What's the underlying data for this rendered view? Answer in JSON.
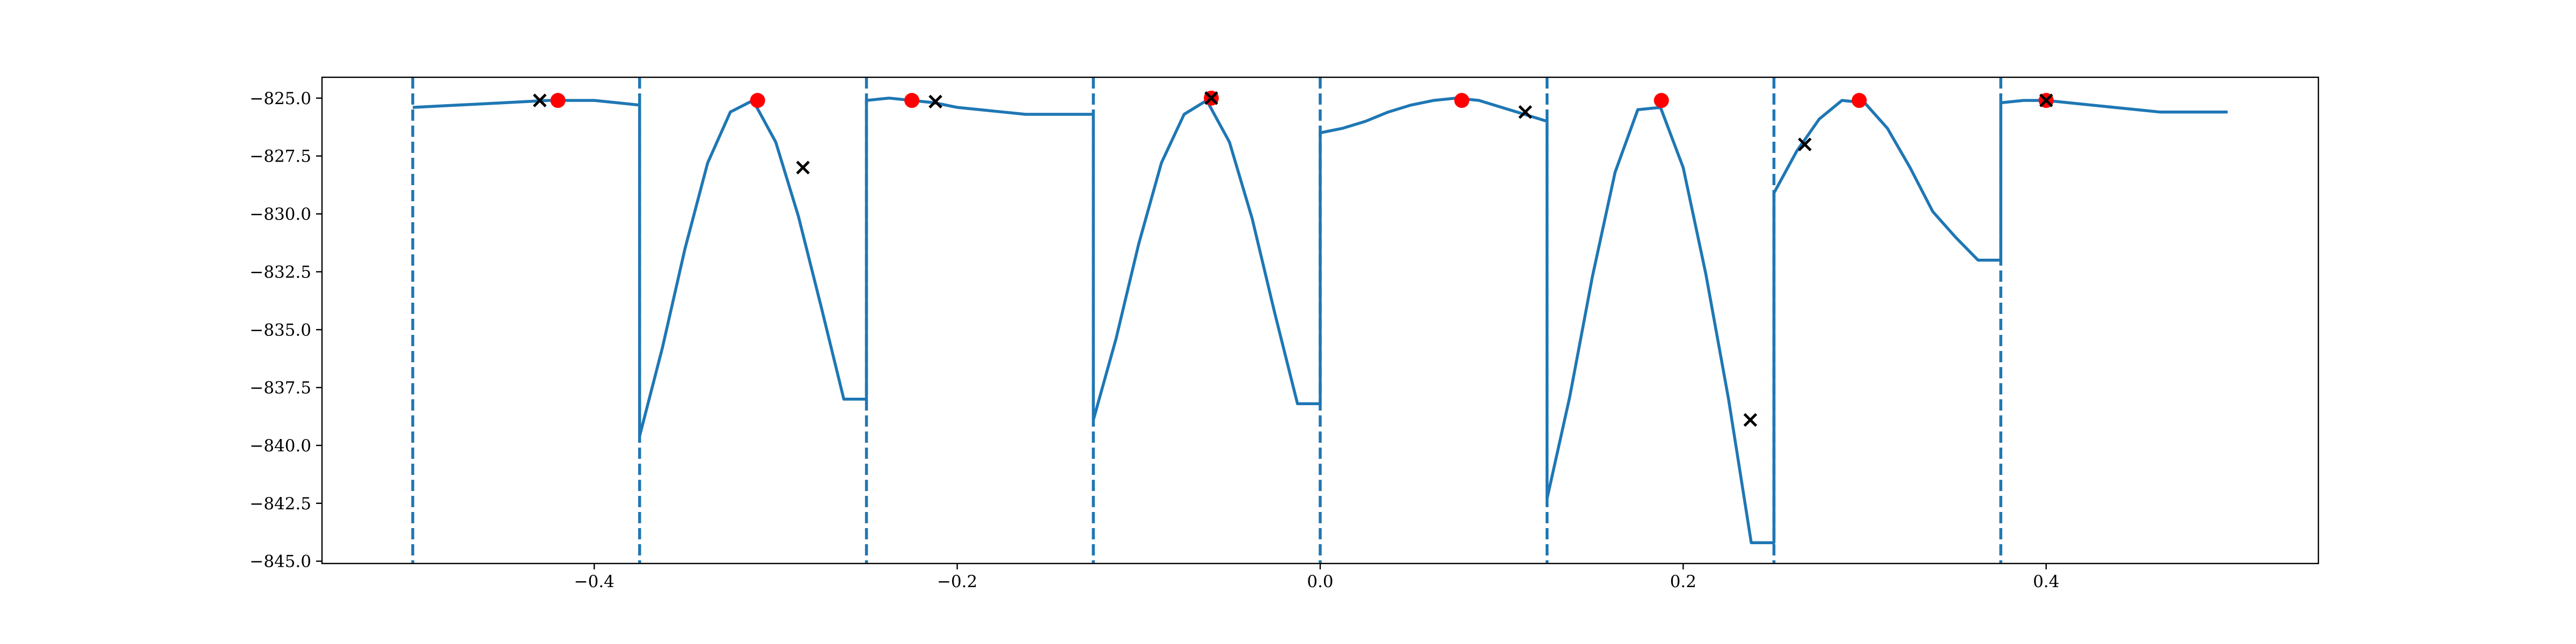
{
  "chart_data": {
    "type": "line",
    "title": "",
    "xlabel": "",
    "ylabel": "",
    "xlim": [
      -0.55,
      0.55
    ],
    "ylim": [
      -845.1,
      -824.1
    ],
    "x_ticks": [
      -0.4,
      -0.2,
      0.0,
      0.2,
      0.4
    ],
    "x_tick_labels": [
      "−0.4",
      "−0.2",
      "0.0",
      "0.2",
      "0.4"
    ],
    "y_ticks": [
      -825.0,
      -827.5,
      -830.0,
      -832.5,
      -835.0,
      -837.5,
      -840.0,
      -842.5,
      -845.0
    ],
    "y_tick_labels": [
      "−825.0",
      "−827.5",
      "−830.0",
      "−832.5",
      "−835.0",
      "−837.5",
      "−840.0",
      "−842.5",
      "−845.0"
    ],
    "grid": false,
    "legend": "none",
    "colors": {
      "line": "#1f77b4",
      "boundary": "#1f77b4",
      "optimum": "#ff0000",
      "sample": "#000000"
    },
    "boundaries": [
      -0.5,
      -0.375,
      -0.25,
      -0.125,
      0.0,
      0.125,
      0.25,
      0.375
    ],
    "series": [
      {
        "type": "line",
        "x": [
          -0.5,
          -0.475,
          -0.45,
          -0.425,
          -0.4,
          -0.375,
          -0.375,
          -0.3625,
          -0.35,
          -0.3375,
          -0.325,
          -0.3125,
          -0.3,
          -0.2875,
          -0.275,
          -0.2625,
          -0.25,
          -0.25,
          -0.2375,
          -0.225,
          -0.2125,
          -0.2,
          -0.1875,
          -0.175,
          -0.1625,
          -0.15,
          -0.1375,
          -0.125,
          -0.125,
          -0.1125,
          -0.1,
          -0.0875,
          -0.075,
          -0.0625,
          -0.05,
          -0.0375,
          -0.025,
          -0.0125,
          0.0,
          0.0,
          0.0125,
          0.025,
          0.0375,
          0.05,
          0.0625,
          0.075,
          0.0875,
          0.1,
          0.1125,
          0.125,
          0.125,
          0.1375,
          0.15,
          0.1625,
          0.175,
          0.1875,
          0.2,
          0.2125,
          0.225,
          0.2375,
          0.25,
          0.25,
          0.2625,
          0.275,
          0.2875,
          0.3,
          0.3125,
          0.325,
          0.3375,
          0.35,
          0.3625,
          0.375,
          0.375,
          0.3875,
          0.4,
          0.4125,
          0.425,
          0.4375,
          0.45,
          0.4625,
          0.475,
          0.4875,
          0.5
        ],
        "y": [
          -825.4,
          -825.3,
          -825.2,
          -825.1,
          -825.1,
          -825.3,
          -839.6,
          -835.8,
          -831.5,
          -827.8,
          -825.6,
          -825.1,
          -826.9,
          -830.1,
          -834.0,
          -838.0,
          -838.0,
          -825.1,
          -825.0,
          -825.1,
          -825.2,
          -825.4,
          -825.5,
          -825.6,
          -825.7,
          -825.7,
          -825.7,
          -825.7,
          -838.9,
          -835.4,
          -831.3,
          -827.8,
          -825.7,
          -825.1,
          -826.9,
          -830.2,
          -834.3,
          -838.2,
          -838.2,
          -826.5,
          -826.3,
          -826.0,
          -825.6,
          -825.3,
          -825.1,
          -825.0,
          -825.1,
          -825.4,
          -825.7,
          -826.0,
          -842.3,
          -837.9,
          -832.7,
          -828.2,
          -825.5,
          -825.4,
          -828.0,
          -832.6,
          -838.0,
          -844.2,
          -844.2,
          -829.1,
          -827.3,
          -825.9,
          -825.1,
          -825.2,
          -826.3,
          -828.0,
          -829.9,
          -831.0,
          -832.0,
          -832.0,
          -825.2,
          -825.1,
          -825.1,
          -825.2,
          -825.3,
          -825.4,
          -825.5,
          -825.6,
          -825.6,
          -825.6,
          -825.6
        ]
      }
    ],
    "optima": {
      "x": [
        -0.42,
        -0.31,
        -0.225,
        -0.06,
        0.078,
        0.188,
        0.297,
        0.4
      ],
      "y": [
        -825.1,
        -825.1,
        -825.1,
        -825.0,
        -825.1,
        -825.1,
        -825.1,
        -825.1
      ]
    },
    "samples": {
      "x": [
        -0.43,
        -0.285,
        -0.212,
        -0.06,
        0.113,
        0.237,
        0.267,
        0.4
      ],
      "y": [
        -825.1,
        -828.0,
        -825.15,
        -825.0,
        -825.6,
        -838.9,
        -827.0,
        -825.1
      ]
    }
  }
}
